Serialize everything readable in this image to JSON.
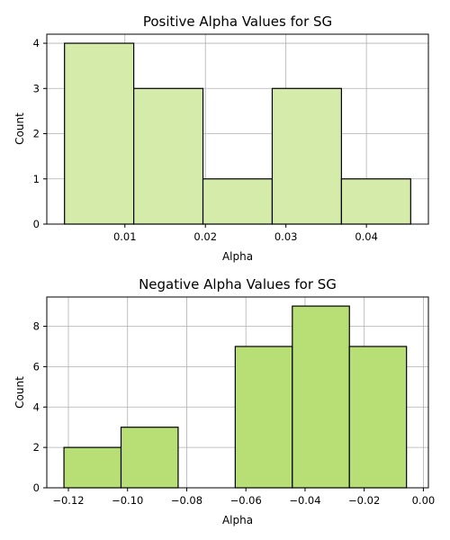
{
  "chart_data": [
    {
      "type": "bar",
      "title": "Positive Alpha Values for SG",
      "xlabel": "Alpha",
      "ylabel": "Count",
      "bin_edges": [
        0.0025,
        0.0111,
        0.0197,
        0.0283,
        0.0369,
        0.0455
      ],
      "values": [
        4,
        3,
        1,
        3,
        1
      ],
      "xlim": [
        0.0003,
        0.0477
      ],
      "ylim": [
        0,
        4.2
      ],
      "xticks": [
        0.01,
        0.02,
        0.03,
        0.04
      ],
      "xtick_labels": [
        "0.01",
        "0.02",
        "0.03",
        "0.04"
      ],
      "yticks": [
        0,
        1,
        2,
        3,
        4
      ],
      "ytick_labels": [
        "0",
        "1",
        "2",
        "3",
        "4"
      ],
      "bar_color": "#d4ebaa",
      "edge_color": "#000000",
      "grid": true
    },
    {
      "type": "bar",
      "title": "Negative Alpha Values for SG",
      "xlabel": "Alpha",
      "ylabel": "Count",
      "bin_edges": [
        -0.1215,
        -0.1022,
        -0.0829,
        -0.0636,
        -0.0443,
        -0.025,
        -0.0057
      ],
      "values": [
        2,
        3,
        0,
        7,
        9,
        7
      ],
      "xlim": [
        -0.1273,
        0.0017
      ],
      "ylim": [
        0,
        9.45
      ],
      "xticks": [
        -0.12,
        -0.1,
        -0.08,
        -0.06,
        -0.04,
        -0.02,
        0.0
      ],
      "xtick_labels": [
        "−0.12",
        "−0.10",
        "−0.08",
        "−0.06",
        "−0.04",
        "−0.02",
        "0.00"
      ],
      "yticks": [
        0,
        2,
        4,
        6,
        8
      ],
      "ytick_labels": [
        "0",
        "2",
        "4",
        "6",
        "8"
      ],
      "bar_color": "#b8df75",
      "edge_color": "#000000",
      "grid": true
    }
  ]
}
